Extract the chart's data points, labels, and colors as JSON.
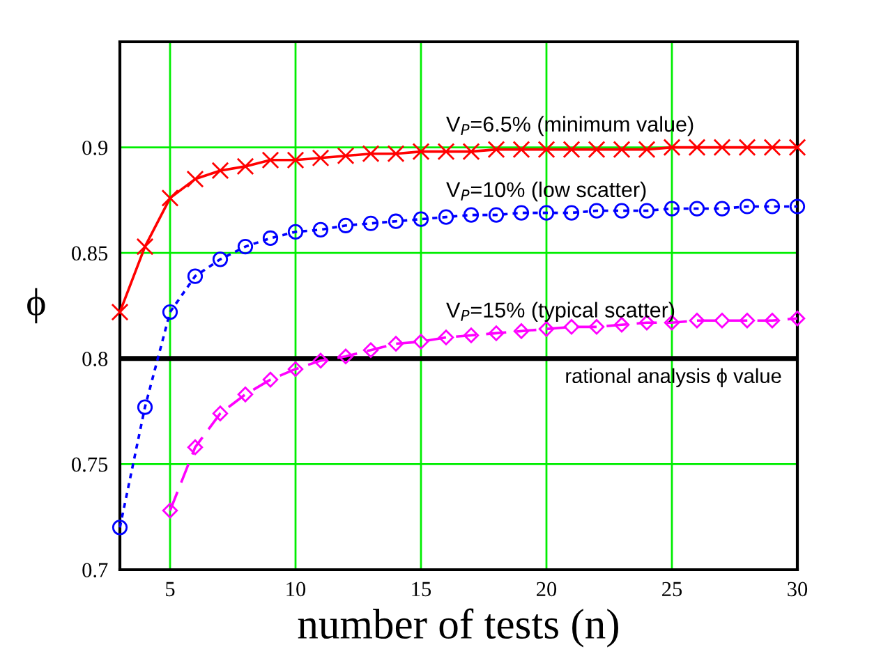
{
  "chart_data": {
    "type": "line",
    "xlabel": "number of tests (n)",
    "ylabel": "ϕ",
    "xlim": [
      3,
      30
    ],
    "xticks": [
      5,
      10,
      15,
      20,
      25,
      30
    ],
    "ylim": [
      0.7,
      0.95
    ],
    "yticks": [
      0.7,
      0.75,
      0.8,
      0.85,
      0.9
    ],
    "grid": true,
    "series": [
      {
        "name": "V$_{P}$=6.5% (minimum value)",
        "color": "#ff0000",
        "marker": "cross",
        "line_style": "solid",
        "x": [
          3,
          4,
          5,
          6,
          7,
          8,
          9,
          10,
          11,
          12,
          13,
          14,
          15,
          16,
          17,
          18,
          19,
          20,
          21,
          22,
          23,
          24,
          25,
          26,
          27,
          28,
          29,
          30
        ],
        "values": [
          0.822,
          0.853,
          0.876,
          0.885,
          0.889,
          0.891,
          0.894,
          0.894,
          0.895,
          0.896,
          0.897,
          0.897,
          0.898,
          0.898,
          0.898,
          0.899,
          0.899,
          0.899,
          0.899,
          0.899,
          0.899,
          0.899,
          0.9,
          0.9,
          0.9,
          0.9,
          0.9,
          0.9
        ]
      },
      {
        "name": "V$_{P}$=10% (low scatter)",
        "color": "#0000ff",
        "marker": "circle",
        "line_style": "dotted",
        "x": [
          3,
          4,
          5,
          6,
          7,
          8,
          9,
          10,
          11,
          12,
          13,
          14,
          15,
          16,
          17,
          18,
          19,
          20,
          21,
          22,
          23,
          24,
          25,
          26,
          27,
          28,
          29,
          30
        ],
        "values": [
          0.72,
          0.777,
          0.822,
          0.839,
          0.847,
          0.853,
          0.857,
          0.86,
          0.861,
          0.863,
          0.864,
          0.865,
          0.866,
          0.867,
          0.868,
          0.868,
          0.869,
          0.869,
          0.869,
          0.87,
          0.87,
          0.87,
          0.871,
          0.871,
          0.871,
          0.872,
          0.872,
          0.872
        ]
      },
      {
        "name": "V$_{P}$=15% (typical scatter)",
        "color": "#ff00ff",
        "marker": "diamond",
        "line_style": "dashed",
        "x": [
          5,
          6,
          7,
          8,
          9,
          10,
          11,
          12,
          13,
          14,
          15,
          16,
          17,
          18,
          19,
          20,
          21,
          22,
          23,
          24,
          25,
          26,
          27,
          28,
          29,
          30
        ],
        "values": [
          0.728,
          0.758,
          0.774,
          0.783,
          0.79,
          0.795,
          0.799,
          0.801,
          0.804,
          0.807,
          0.808,
          0.81,
          0.811,
          0.812,
          0.813,
          0.814,
          0.815,
          0.815,
          0.816,
          0.817,
          0.817,
          0.818,
          0.818,
          0.818,
          0.818,
          0.819
        ]
      }
    ],
    "ref_lines": [
      {
        "axis": "y",
        "value": 0.8,
        "label": "rational analysis ϕ value",
        "color": "#000000",
        "line_style": "solid"
      }
    ]
  }
}
